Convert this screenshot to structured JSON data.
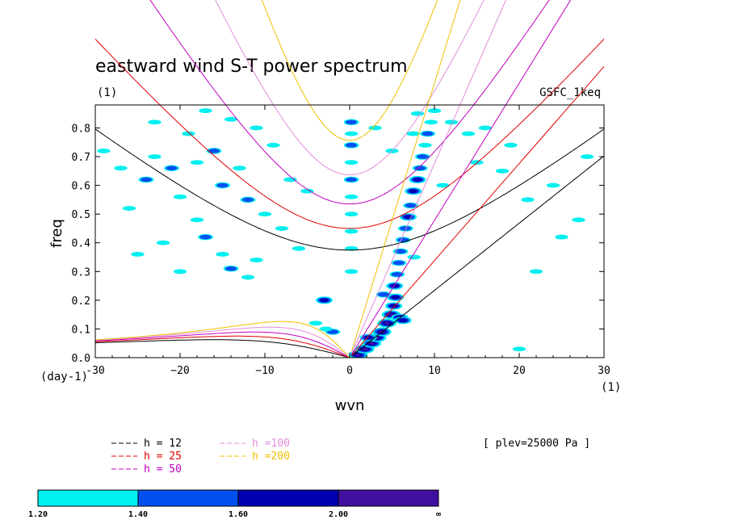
{
  "chart_data": {
    "type": "heatmap",
    "title": "eastward wind S-T power spectrum",
    "subtitle": "(1)",
    "source_label": "GSFC_1keq",
    "xlabel": "wvn",
    "ylabel": "freq",
    "x_unit": "(1)",
    "y_unit": "(day-1)",
    "xlim": [
      -30,
      30
    ],
    "ylim": [
      0,
      0.88
    ],
    "x_ticks": [
      -30,
      -20,
      -10,
      0,
      10,
      20,
      30
    ],
    "x_tick_labels": [
      "-30",
      "−20",
      "−10",
      "0",
      "10",
      "20",
      "30"
    ],
    "y_ticks": [
      0,
      0.1,
      0.2,
      0.3,
      0.4,
      0.5,
      0.6,
      0.7,
      0.8
    ],
    "y_tick_labels": [
      "0.0",
      "0.1",
      "0.2",
      "0.3",
      "0.4",
      "0.5",
      "0.6",
      "0.7",
      "0.8"
    ],
    "annotation": "[ plev=25000 Pa ]",
    "dispersion_curves": [
      {
        "name": "h = 12",
        "h": 12,
        "color": "#000000"
      },
      {
        "name": "h = 25",
        "h": 25,
        "color": "#e00000"
      },
      {
        "name": "h = 50",
        "h": 50,
        "color": "#c000c0"
      },
      {
        "name": "h =100",
        "h": 100,
        "color": "#e08cd8"
      },
      {
        "name": "h =200",
        "h": 200,
        "color": "#f0c000"
      }
    ],
    "colorbar": {
      "labels": [
        "1.20",
        "1.40",
        "1.60",
        "2.00",
        "∞"
      ],
      "colors": [
        "#00f0f0",
        "#0050f0",
        "#0000b0",
        "#4010a0"
      ]
    },
    "spectral_blobs": [
      {
        "x": 0.2,
        "y": 0.82,
        "level": 2
      },
      {
        "x": 0.2,
        "y": 0.78,
        "level": 1
      },
      {
        "x": 0.2,
        "y": 0.74,
        "level": 2
      },
      {
        "x": 0.2,
        "y": 0.68,
        "level": 1
      },
      {
        "x": 0.2,
        "y": 0.62,
        "level": 2
      },
      {
        "x": 0.2,
        "y": 0.56,
        "level": 1
      },
      {
        "x": 0.2,
        "y": 0.5,
        "level": 1
      },
      {
        "x": 0.2,
        "y": 0.44,
        "level": 1
      },
      {
        "x": 0.2,
        "y": 0.38,
        "level": 1
      },
      {
        "x": 0.2,
        "y": 0.3,
        "level": 1
      },
      {
        "x": 1.0,
        "y": 0.01,
        "level": 4
      },
      {
        "x": 1.8,
        "y": 0.03,
        "level": 4
      },
      {
        "x": 2.6,
        "y": 0.05,
        "level": 4
      },
      {
        "x": 3.2,
        "y": 0.07,
        "level": 4
      },
      {
        "x": 3.8,
        "y": 0.09,
        "level": 4
      },
      {
        "x": 4.4,
        "y": 0.12,
        "level": 4
      },
      {
        "x": 4.9,
        "y": 0.15,
        "level": 4
      },
      {
        "x": 5.2,
        "y": 0.18,
        "level": 3
      },
      {
        "x": 5.4,
        "y": 0.21,
        "level": 3
      },
      {
        "x": 5.3,
        "y": 0.25,
        "level": 3
      },
      {
        "x": 5.6,
        "y": 0.29,
        "level": 2
      },
      {
        "x": 5.8,
        "y": 0.33,
        "level": 2
      },
      {
        "x": 6.0,
        "y": 0.37,
        "level": 2
      },
      {
        "x": 6.3,
        "y": 0.41,
        "level": 2
      },
      {
        "x": 6.6,
        "y": 0.45,
        "level": 2
      },
      {
        "x": 6.9,
        "y": 0.49,
        "level": 3
      },
      {
        "x": 7.2,
        "y": 0.53,
        "level": 2
      },
      {
        "x": 7.5,
        "y": 0.58,
        "level": 3
      },
      {
        "x": 8.0,
        "y": 0.62,
        "level": 3
      },
      {
        "x": 8.3,
        "y": 0.66,
        "level": 2
      },
      {
        "x": 8.6,
        "y": 0.7,
        "level": 2
      },
      {
        "x": 8.9,
        "y": 0.74,
        "level": 1
      },
      {
        "x": 9.2,
        "y": 0.78,
        "level": 2
      },
      {
        "x": 9.6,
        "y": 0.82,
        "level": 1
      },
      {
        "x": 10.0,
        "y": 0.86,
        "level": 1
      },
      {
        "x": 5.9,
        "y": 0.14,
        "level": 3
      },
      {
        "x": 6.3,
        "y": 0.13,
        "level": 3
      },
      {
        "x": 2.2,
        "y": 0.07,
        "level": 3
      },
      {
        "x": 4.0,
        "y": 0.22,
        "level": 2
      },
      {
        "x": 7.6,
        "y": 0.35,
        "level": 1
      },
      {
        "x": -2.0,
        "y": 0.09,
        "level": 2
      },
      {
        "x": -2.8,
        "y": 0.1,
        "level": 1
      },
      {
        "x": -4.0,
        "y": 0.12,
        "level": 1
      },
      {
        "x": -26,
        "y": 0.52,
        "level": 1
      },
      {
        "x": -24,
        "y": 0.62,
        "level": 2
      },
      {
        "x": -23,
        "y": 0.7,
        "level": 1
      },
      {
        "x": -21,
        "y": 0.66,
        "level": 2
      },
      {
        "x": -20,
        "y": 0.56,
        "level": 1
      },
      {
        "x": -18,
        "y": 0.48,
        "level": 1
      },
      {
        "x": -17,
        "y": 0.42,
        "level": 2
      },
      {
        "x": -15,
        "y": 0.36,
        "level": 1
      },
      {
        "x": -14,
        "y": 0.31,
        "level": 2
      },
      {
        "x": -12,
        "y": 0.28,
        "level": 1
      },
      {
        "x": -11,
        "y": 0.34,
        "level": 1
      },
      {
        "x": -19,
        "y": 0.78,
        "level": 1
      },
      {
        "x": -16,
        "y": 0.72,
        "level": 2
      },
      {
        "x": -14,
        "y": 0.83,
        "level": 1
      },
      {
        "x": -13,
        "y": 0.66,
        "level": 1
      },
      {
        "x": -12,
        "y": 0.55,
        "level": 2
      },
      {
        "x": -10,
        "y": 0.5,
        "level": 1
      },
      {
        "x": -8,
        "y": 0.45,
        "level": 1
      },
      {
        "x": -7,
        "y": 0.62,
        "level": 1
      },
      {
        "x": -6,
        "y": 0.38,
        "level": 1
      },
      {
        "x": -5,
        "y": 0.58,
        "level": 1
      },
      {
        "x": -22,
        "y": 0.4,
        "level": 1
      },
      {
        "x": -25,
        "y": 0.36,
        "level": 1
      },
      {
        "x": -27,
        "y": 0.66,
        "level": 1
      },
      {
        "x": -29,
        "y": 0.72,
        "level": 1
      },
      {
        "x": -17,
        "y": 0.86,
        "level": 1
      },
      {
        "x": -20,
        "y": 0.3,
        "level": 1
      },
      {
        "x": -23,
        "y": 0.82,
        "level": 1
      },
      {
        "x": -9,
        "y": 0.74,
        "level": 1
      },
      {
        "x": -3,
        "y": 0.2,
        "level": 3
      },
      {
        "x": -15,
        "y": 0.6,
        "level": 2
      },
      {
        "x": -11,
        "y": 0.8,
        "level": 1
      },
      {
        "x": -18,
        "y": 0.68,
        "level": 1
      },
      {
        "x": 12,
        "y": 0.82,
        "level": 1
      },
      {
        "x": 14,
        "y": 0.78,
        "level": 1
      },
      {
        "x": 16,
        "y": 0.8,
        "level": 1
      },
      {
        "x": 19,
        "y": 0.74,
        "level": 1
      },
      {
        "x": 21,
        "y": 0.55,
        "level": 1
      },
      {
        "x": 24,
        "y": 0.6,
        "level": 1
      },
      {
        "x": 27,
        "y": 0.48,
        "level": 1
      },
      {
        "x": 15,
        "y": 0.68,
        "level": 1
      },
      {
        "x": 11,
        "y": 0.6,
        "level": 1
      },
      {
        "x": 18,
        "y": 0.65,
        "level": 1
      },
      {
        "x": 25,
        "y": 0.42,
        "level": 1
      },
      {
        "x": 22,
        "y": 0.3,
        "level": 1
      },
      {
        "x": 3,
        "y": 0.8,
        "level": 1
      },
      {
        "x": 5,
        "y": 0.72,
        "level": 1
      },
      {
        "x": 8,
        "y": 0.85,
        "level": 1
      },
      {
        "x": 7.5,
        "y": 0.78,
        "level": 1
      },
      {
        "x": 28,
        "y": 0.7,
        "level": 1
      },
      {
        "x": 20,
        "y": 0.03,
        "level": 1
      }
    ]
  }
}
